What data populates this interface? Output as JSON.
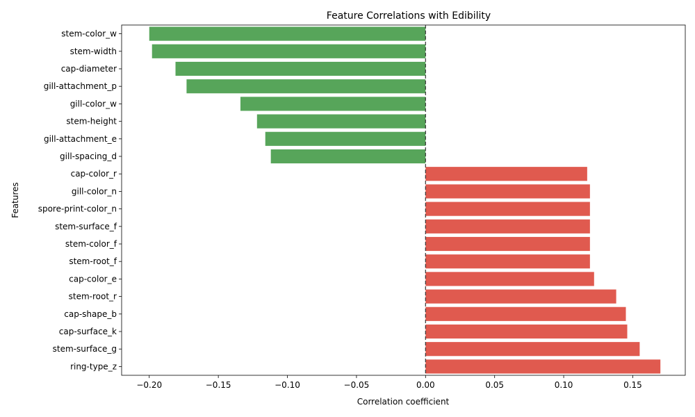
{
  "chart_data": {
    "type": "bar",
    "orientation": "horizontal",
    "title": "Feature Correlations with Edibility",
    "xlabel": "Correlation coefficient",
    "ylabel": "Features",
    "xlim": [
      -0.22,
      0.188
    ],
    "xticks": [
      -0.2,
      -0.15,
      -0.1,
      -0.05,
      0.0,
      0.05,
      0.1,
      0.15
    ],
    "xtick_labels": [
      "−0.20",
      "−0.15",
      "−0.10",
      "−0.05",
      "0.00",
      "0.05",
      "0.10",
      "0.15"
    ],
    "categories": [
      "stem-color_w",
      "stem-width",
      "cap-diameter",
      "gill-attachment_p",
      "gill-color_w",
      "stem-height",
      "gill-attachment_e",
      "gill-spacing_d",
      "cap-color_r",
      "gill-color_n",
      "spore-print-color_n",
      "stem-surface_f",
      "stem-color_f",
      "stem-root_f",
      "cap-color_e",
      "stem-root_r",
      "cap-shape_b",
      "cap-surface_k",
      "stem-surface_g",
      "ring-type_z"
    ],
    "values": [
      -0.2,
      -0.198,
      -0.181,
      -0.173,
      -0.134,
      -0.122,
      -0.116,
      -0.112,
      0.117,
      0.119,
      0.119,
      0.119,
      0.119,
      0.119,
      0.122,
      0.138,
      0.145,
      0.146,
      0.155,
      0.17
    ],
    "colors": {
      "negative": "#57a55a",
      "positive": "#e05a4f"
    },
    "reference_line": {
      "x": 0,
      "style": "dashed",
      "color": "#333333"
    },
    "grid": false,
    "legend": "none"
  }
}
